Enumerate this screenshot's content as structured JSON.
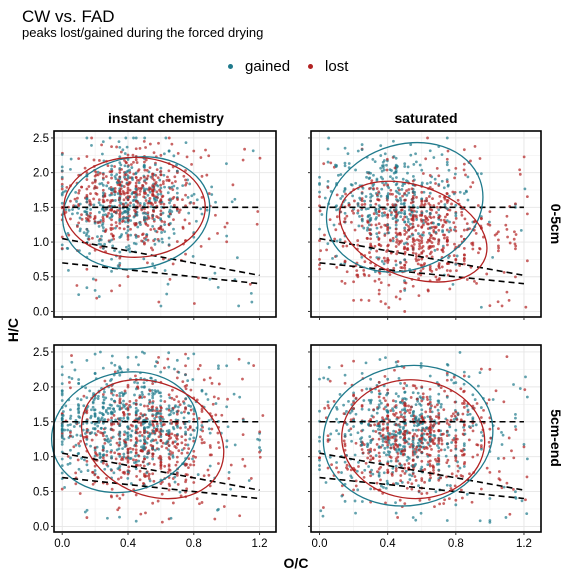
{
  "chart_data": {
    "type": "scatter",
    "title": "CW vs. FAD",
    "subtitle": "peaks lost/gained during the forced drying",
    "xlabel": "O/C",
    "ylabel": "H/C",
    "xlim": [
      -0.05,
      1.3
    ],
    "ylim": [
      -0.08,
      2.6
    ],
    "x_ticks": [
      "0.0",
      "0.4",
      "0.8",
      "1.2"
    ],
    "y_ticks": [
      "0.0",
      "0.5",
      "1.0",
      "1.5",
      "2.0",
      "2.5"
    ],
    "x_tick_values": [
      0,
      0.4,
      0.8,
      1.2
    ],
    "y_tick_values": [
      0,
      0.5,
      1.0,
      1.5,
      2.0,
      2.5
    ],
    "column_facets": [
      "instant chemistry",
      "saturated"
    ],
    "row_facets": [
      "0-5cm",
      "5cm-end"
    ],
    "legend": {
      "position": "top",
      "items": [
        {
          "name": "gained",
          "color": "#1f7a8c"
        },
        {
          "name": "lost",
          "color": "#b22222"
        }
      ]
    },
    "reference_lines": [
      {
        "type": "horizontal",
        "y": 1.5,
        "x_range": [
          0,
          1.2
        ]
      },
      {
        "type": "line",
        "from": [
          0,
          1.05
        ],
        "to": [
          1.2,
          0.52
        ]
      },
      {
        "type": "line",
        "from": [
          0,
          0.7
        ],
        "to": [
          1.2,
          0.4
        ]
      }
    ],
    "panels": [
      {
        "column": "instant chemistry",
        "row": "0-5cm",
        "ellipses": [
          {
            "series": "gained",
            "cx": 0.45,
            "cy": 1.42,
            "rx": 0.45,
            "ry": 0.8,
            "angle": -10
          },
          {
            "series": "lost",
            "cx": 0.44,
            "cy": 1.5,
            "rx": 0.43,
            "ry": 0.72,
            "angle": 0
          }
        ],
        "clusters": [
          {
            "series": "gained",
            "cx": 0.4,
            "cy": 1.55,
            "sx": 0.2,
            "sy": 0.38,
            "n": 420
          },
          {
            "series": "lost",
            "cx": 0.42,
            "cy": 1.6,
            "sx": 0.19,
            "sy": 0.34,
            "n": 520
          }
        ]
      },
      {
        "column": "saturated",
        "row": "0-5cm",
        "ellipses": [
          {
            "series": "gained",
            "cx": 0.5,
            "cy": 1.5,
            "rx": 0.47,
            "ry": 0.9,
            "angle": -20
          },
          {
            "series": "lost",
            "cx": 0.55,
            "cy": 1.15,
            "rx": 0.45,
            "ry": 0.66,
            "angle": 20
          }
        ],
        "clusters": [
          {
            "series": "gained",
            "cx": 0.45,
            "cy": 1.6,
            "sx": 0.2,
            "sy": 0.38,
            "n": 380
          },
          {
            "series": "lost",
            "cx": 0.55,
            "cy": 1.15,
            "sx": 0.23,
            "sy": 0.42,
            "n": 620
          }
        ]
      },
      {
        "column": "instant chemistry",
        "row": "5cm-end",
        "ellipses": [
          {
            "series": "gained",
            "cx": 0.38,
            "cy": 1.35,
            "rx": 0.45,
            "ry": 0.85,
            "angle": -15
          },
          {
            "series": "lost",
            "cx": 0.55,
            "cy": 1.25,
            "rx": 0.45,
            "ry": 0.8,
            "angle": 25
          }
        ],
        "clusters": [
          {
            "series": "gained",
            "cx": 0.38,
            "cy": 1.5,
            "sx": 0.23,
            "sy": 0.4,
            "n": 620
          },
          {
            "series": "lost",
            "cx": 0.52,
            "cy": 1.25,
            "sx": 0.23,
            "sy": 0.42,
            "n": 520
          }
        ]
      },
      {
        "column": "saturated",
        "row": "5cm-end",
        "ellipses": [
          {
            "series": "gained",
            "cx": 0.52,
            "cy": 1.3,
            "rx": 0.5,
            "ry": 1.0,
            "angle": -10
          },
          {
            "series": "lost",
            "cx": 0.55,
            "cy": 1.25,
            "rx": 0.42,
            "ry": 0.85,
            "angle": 5
          }
        ],
        "clusters": [
          {
            "series": "gained",
            "cx": 0.5,
            "cy": 1.35,
            "sx": 0.22,
            "sy": 0.42,
            "n": 520
          },
          {
            "series": "lost",
            "cx": 0.55,
            "cy": 1.25,
            "sx": 0.22,
            "sy": 0.4,
            "n": 560
          }
        ]
      }
    ]
  }
}
